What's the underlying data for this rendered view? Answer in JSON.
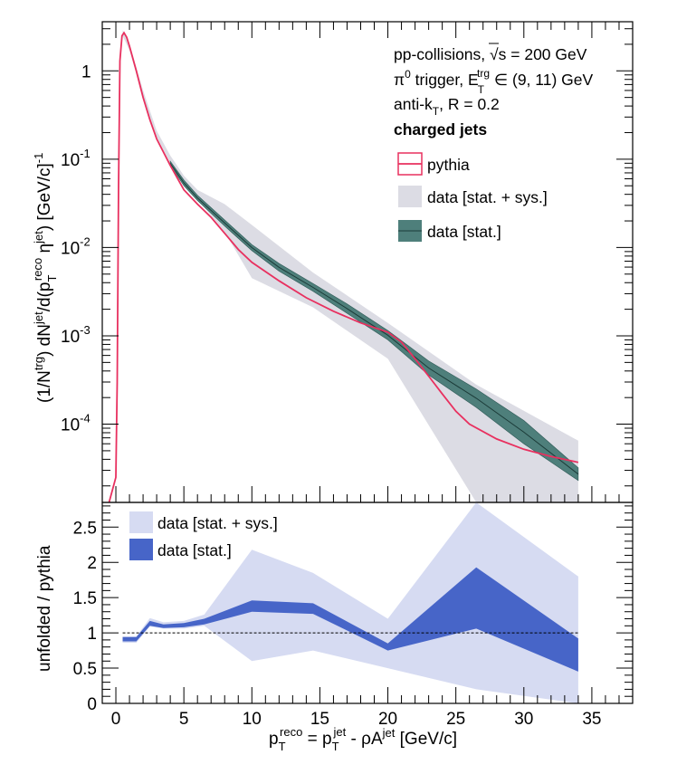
{
  "colors": {
    "pythia": "#e8305f",
    "sys_band_top": "#dcdce4",
    "stat_band_top": "#4e7f7b",
    "sys_band_ratio": "#d6dbf2",
    "stat_band_ratio": "#4765c8",
    "axis": "#000000"
  },
  "info_text": {
    "line1_pre": "pp-collisions, ",
    "line1_sqrt": "√s",
    "line1_post": " = 200 GeV",
    "line2_pre": "π",
    "line2_sup": "0",
    "line2_mid": " trigger, E",
    "line2_sub": "T",
    "line2_sup2": "trg",
    "line2_post": " ∈ (9, 11) GeV",
    "line3_pre": "anti-k",
    "line3_sub": "T",
    "line3_post": ", R = 0.2",
    "line4": "charged jets"
  },
  "legend_top": [
    {
      "label": "pythia"
    },
    {
      "label": "data [stat. + sys.]"
    },
    {
      "label": "data [stat.]"
    }
  ],
  "legend_bottom": [
    {
      "label": "data [stat. + sys.]"
    },
    {
      "label": "data [stat.]"
    }
  ],
  "axes": {
    "top_ylabel": "(1/N^trg) dN^jet/d(p_T^reco η^jet) [GeV/c]^-1",
    "bottom_ylabel": "unfolded / pythia",
    "xlabel": "p_T^reco = p_T^jet - ρA^jet [GeV/c]"
  },
  "chart_data": [
    {
      "type": "line",
      "panel": "top",
      "yscale": "log",
      "xlim": [
        -1,
        38
      ],
      "ylim": [
        1.3e-05,
        3.6
      ],
      "y_ticks": [
        {
          "value": 0.0001,
          "base": "10",
          "exp": "-4"
        },
        {
          "value": 0.001,
          "base": "10",
          "exp": "-3"
        },
        {
          "value": 0.01,
          "base": "10",
          "exp": "-2"
        },
        {
          "value": 0.1,
          "base": "10",
          "exp": "-1"
        },
        {
          "value": 1,
          "base": "1",
          "exp": ""
        }
      ],
      "series": [
        {
          "name": "pythia",
          "kind": "line",
          "x": [
            -0.5,
            0.0,
            0.1,
            0.2,
            0.3,
            0.45,
            0.6,
            0.8,
            1.0,
            1.5,
            2.0,
            2.5,
            3.0,
            4.0,
            5.0,
            6.0,
            7.0,
            8.0,
            9.0,
            10.0,
            12.0,
            14.0,
            16.0,
            18.0,
            20.0,
            21.0,
            22.0,
            23.0,
            24.0,
            25.0,
            26.0,
            28.0,
            30.0,
            32.0,
            34.0
          ],
          "y": [
            1.3e-05,
            2.5e-05,
            0.0003,
            0.05,
            1.3,
            2.5,
            2.7,
            2.4,
            1.9,
            1.0,
            0.5,
            0.28,
            0.17,
            0.085,
            0.045,
            0.031,
            0.022,
            0.0145,
            0.0095,
            0.0068,
            0.0042,
            0.0027,
            0.0019,
            0.0014,
            0.0011,
            0.00085,
            0.00055,
            0.00035,
            0.00022,
            0.00014,
            0.0001,
            6.8e-05,
            5.2e-05,
            4.3e-05,
            3.7e-05
          ]
        },
        {
          "name": "data [stat. + sys.]",
          "kind": "band",
          "x": [
            0.5,
            1.0,
            2.0,
            3.0,
            4.0,
            5.0,
            6.0,
            8.0,
            10.0,
            14.5,
            20.0,
            26.5,
            34.0
          ],
          "y_low": [
            2.5,
            1.7,
            0.5,
            0.18,
            0.09,
            0.05,
            0.035,
            0.015,
            0.0045,
            0.0021,
            0.00055,
            1.3e-05,
            1.3e-05
          ],
          "y_high": [
            2.9,
            2.0,
            0.6,
            0.21,
            0.11,
            0.065,
            0.045,
            0.031,
            0.018,
            0.0052,
            0.0014,
            0.00028,
            6.5e-05
          ]
        },
        {
          "name": "data [stat.]",
          "kind": "band",
          "x": [
            4.0,
            5.0,
            6.0,
            8.0,
            10.0,
            12.0,
            14.5,
            17.0,
            20.0,
            23.0,
            26.5,
            30.0,
            34.0
          ],
          "y_low": [
            0.085,
            0.05,
            0.034,
            0.0175,
            0.0092,
            0.0054,
            0.0032,
            0.0018,
            0.0009,
            0.00036,
            0.000155,
            6e-05,
            2.3e-05
          ],
          "y_high": [
            0.095,
            0.058,
            0.039,
            0.0205,
            0.0108,
            0.0066,
            0.0039,
            0.0023,
            0.00115,
            0.00052,
            0.00025,
            0.00011,
            3.2e-05
          ]
        }
      ]
    },
    {
      "type": "line",
      "panel": "bottom",
      "xlim": [
        -1,
        38
      ],
      "ylim": [
        0,
        2.85
      ],
      "y_ticks": [
        0,
        0.5,
        1,
        1.5,
        2,
        2.5
      ],
      "x_ticks": [
        0,
        5,
        10,
        15,
        20,
        25,
        30,
        35
      ],
      "reference_line": 1,
      "series": [
        {
          "name": "data [stat. + sys.]",
          "kind": "band",
          "x": [
            0.5,
            1.5,
            2.5,
            3.5,
            5.0,
            6.5,
            10.0,
            14.5,
            20.0,
            26.5,
            34.0
          ],
          "y_low": [
            0.86,
            0.86,
            1.09,
            1.06,
            1.06,
            1.1,
            0.6,
            0.75,
            0.5,
            0.2,
            0.0
          ],
          "y_high": [
            0.95,
            0.95,
            1.21,
            1.15,
            1.17,
            1.26,
            2.18,
            1.85,
            1.2,
            2.85,
            1.8
          ]
        },
        {
          "name": "data [stat.]",
          "kind": "band",
          "x": [
            0.5,
            1.5,
            2.5,
            3.5,
            5.0,
            6.5,
            10.0,
            14.5,
            20.0,
            26.5,
            34.0
          ],
          "y_low": [
            0.88,
            0.88,
            1.1,
            1.07,
            1.08,
            1.12,
            1.3,
            1.27,
            0.75,
            1.06,
            0.45
          ],
          "y_high": [
            0.94,
            0.94,
            1.17,
            1.12,
            1.14,
            1.2,
            1.46,
            1.42,
            0.85,
            1.93,
            0.92
          ]
        }
      ]
    }
  ]
}
